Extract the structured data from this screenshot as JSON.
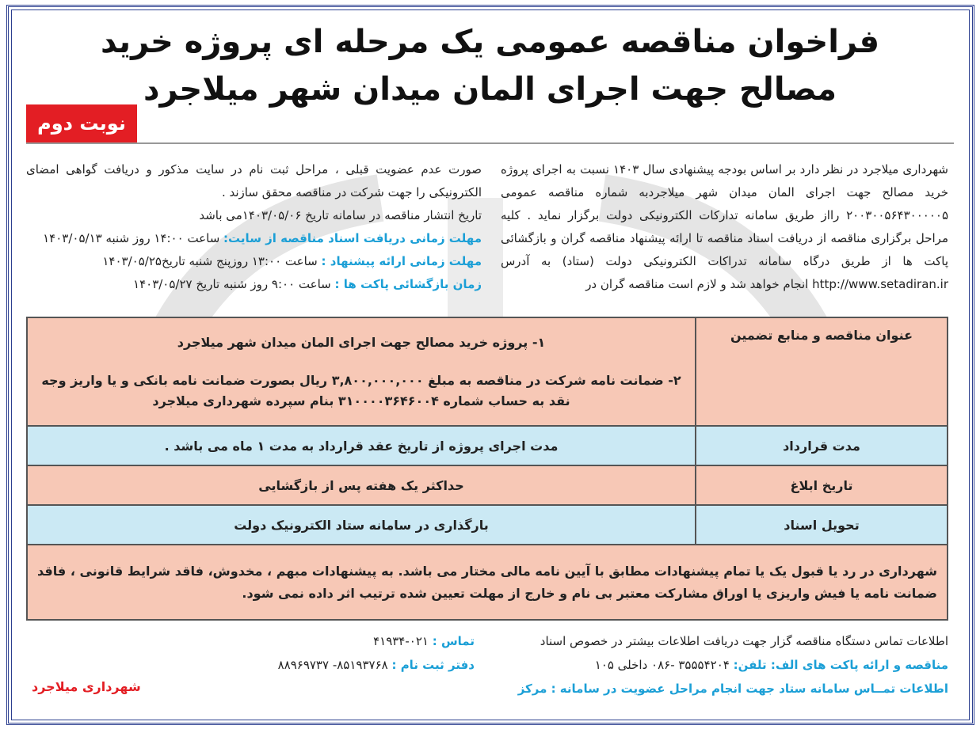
{
  "title": {
    "line1": "فراخوان مناقصه عمومی یک مرحله ای پروژه خرید",
    "line2": "مصالح جهت اجرای المان میدان شهر میلاجرد"
  },
  "badge": "نوبت دوم",
  "intro_right": "شهرداری میلاجرد در نظر دارد بر اساس بودجه پیشنهادی سال ۱۴۰۳ نسبت به اجرای پروژه خرید مصالح جهت اجرای المان میدان شهر میلاجردبه شماره مناقصه عمومی ۲۰۰۳۰۰۵۶۴۳۰۰۰۰۰۵ رااز طریق سامانه تدارکات الکترونیکی دولت برگزار نماید . کلیه مراحل برگزاری مناقصه از دریافت اسناد مناقصه تا ارائه پیشنهاد مناقصه گران و بازگشائی پاکت ها از طریق درگاه سامانه تدراکات الکترونیکی دولت (ستاد) به آدرس http://www.setadiran.ir انجام خواهد شد و لازم است مناقصه گران در",
  "intro_left": "صورت عدم عضویت قبلی ، مراحل ثبت نام در سایت مذکور و دریافت گواهی امضای الکترونیکی را جهت شرکت در مناقصه محقق سازند .",
  "publish": "تاریخ انتشار مناقصه در سامانه تاریخ ۱۴۰۳/۰۵/۰۶می باشد",
  "deadlines": [
    {
      "label": "مهلت زمانی دریافت اسناد مناقصه از سایت:",
      "value": "ساعت ۱۴:۰۰ روز شنبه ۱۴۰۳/۰۵/۱۳"
    },
    {
      "label": "مهلت زمانی ارائه پیشنهاد :",
      "value": "ساعت ۱۳:۰۰ روزپنج شنبه تاریخ۱۴۰۳/۰۵/۲۵"
    },
    {
      "label": "زمان بازگشائی پاکت ها :",
      "value": "ساعت ۹:۰۰ روز شنبه تاریخ ۱۴۰۳/۰۵/۲۷"
    }
  ],
  "table": {
    "rows": [
      {
        "label": "عنوان مناقصه و منابع تضمین",
        "lines": [
          "۱- پروژه خرید مصالح جهت اجرای المان میدان شهر میلاجرد",
          "۲- ضمانت نامه شرکت در مناقصه به مبلغ ۳,۸۰۰,۰۰۰,۰۰۰ ریال بصورت ضمانت نامه بانکی و یا واریز وجه نقد به حساب شماره ۳۱۰۰۰۰۳۶۴۶۰۰۴ بنام سپرده شهرداری میلاجرد"
        ]
      },
      {
        "label": "مدت قرارداد",
        "value": "مدت اجرای پروژه از تاریخ عقد قرارداد به مدت ۱ ماه می باشد ."
      },
      {
        "label": "تاریخ ابلاغ",
        "value": "حداکثر یک هفته پس از بازگشایی"
      },
      {
        "label": "تحویل اسناد",
        "value": "بارگذاری در سامانه ستاد الکترونیک دولت"
      }
    ],
    "note": "شهرداری در رد یا قبول یک یا تمام پیشنهادات مطابق با آیین نامه مالی مختار می باشد. به پیشنهادات مبهم ، مخدوش، فاقد شرایط قانونی ، فاقد ضمانت نامه یا فیش واریزی یا اوراق مشارکت معتبر بی نام و خارج از مهلت تعیین شده ترتیب اثر داده نمی شود."
  },
  "footer": {
    "line1": "اطلاعات تماس دستگاه مناقصه گزار جهت دریافت اطلاعات بیشتر در خصوص اسناد",
    "line2_label": "مناقصه و ارائه پاکت های الف: تلفن:",
    "line2_value": "۳۵۵۵۴۲۰۴ -۰۸۶ داخلی ۱۰۵",
    "line3": "اطلاعات تمــاس سامانه ستاد جهت انجام مراحل عضویت در سامانه : مرکز",
    "contact_label": "تماس :",
    "contact_value": "۰۲۱-۴۱۹۳۴",
    "office_label": "دفتر ثبت نام :",
    "office_value": "۸۵۱۹۳۷۶۸- ۸۸۹۶۹۷۳۷",
    "signature": "شهرداری میلاجرد"
  },
  "colors": {
    "border": "#2c3f8f",
    "badge": "#e31e24",
    "pink": "#f7c8b6",
    "blue": "#cbe9f4",
    "label": "#1b9fd6"
  }
}
